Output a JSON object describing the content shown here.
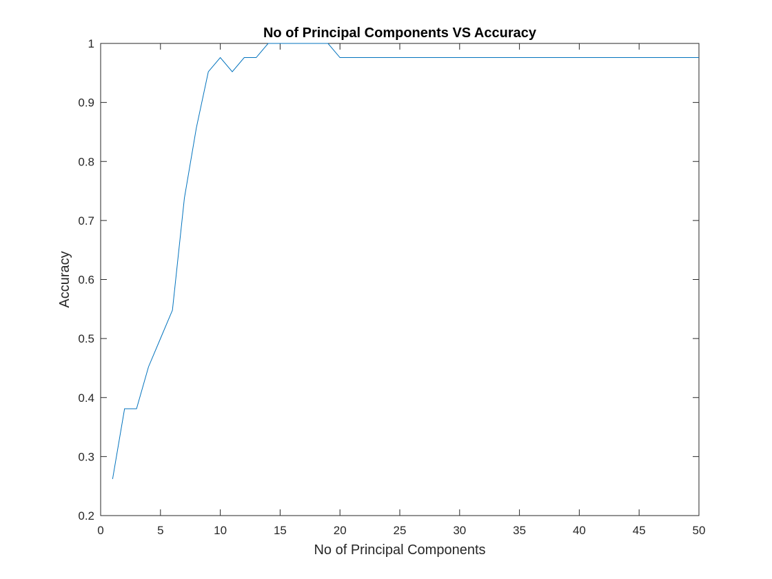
{
  "chart_data": {
    "type": "line",
    "title": "No of Principal Components VS Accuracy",
    "xlabel": "No of Principal Components",
    "ylabel": "Accuracy",
    "xlim": [
      0,
      50
    ],
    "ylim": [
      0.2,
      1
    ],
    "xticks": [
      0,
      5,
      10,
      15,
      20,
      25,
      30,
      35,
      40,
      45,
      50
    ],
    "yticks": [
      0.2,
      0.3,
      0.4,
      0.5,
      0.6,
      0.7,
      0.8,
      0.9,
      1
    ],
    "xtick_labels": [
      "0",
      "5",
      "10",
      "15",
      "20",
      "25",
      "30",
      "35",
      "40",
      "45",
      "50"
    ],
    "ytick_labels": [
      "0.2",
      "0.3",
      "0.4",
      "0.5",
      "0.6",
      "0.7",
      "0.8",
      "0.9",
      "1"
    ],
    "grid": false,
    "line_color": "#0072bd",
    "series": [
      {
        "x": [
          1,
          2,
          3,
          4,
          5,
          6,
          7,
          8,
          9,
          10,
          11,
          12,
          13,
          14,
          15,
          16,
          17,
          18,
          19,
          20,
          21,
          22,
          23,
          24,
          25,
          26,
          27,
          28,
          29,
          30,
          31,
          32,
          33,
          34,
          35,
          36,
          37,
          38,
          39,
          40,
          41,
          42,
          43,
          44,
          45,
          46,
          47,
          48,
          49,
          50
        ],
        "values": [
          0.262,
          0.381,
          0.381,
          0.452,
          0.5,
          0.548,
          0.738,
          0.857,
          0.952,
          0.976,
          0.952,
          0.976,
          0.976,
          1.0,
          1.0,
          1.0,
          1.0,
          1.0,
          1.0,
          0.976,
          0.976,
          0.976,
          0.976,
          0.976,
          0.976,
          0.976,
          0.976,
          0.976,
          0.976,
          0.976,
          0.976,
          0.976,
          0.976,
          0.976,
          0.976,
          0.976,
          0.976,
          0.976,
          0.976,
          0.976,
          0.976,
          0.976,
          0.976,
          0.976,
          0.976,
          0.976,
          0.976,
          0.976,
          0.976,
          0.976
        ]
      }
    ]
  }
}
